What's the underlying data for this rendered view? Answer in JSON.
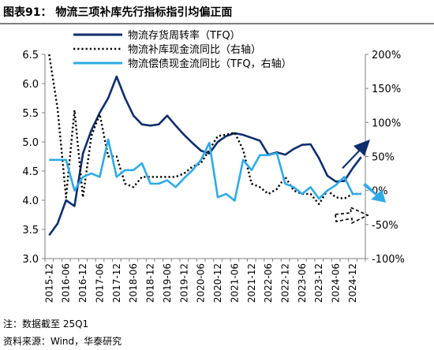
{
  "title": "图表91： 物流三项补库先行指标指引均偏正面",
  "footnote": "注：数据截至 25Q1",
  "source": "资料来源：Wind，华泰研究",
  "colors": {
    "navy": "#0f2e6e",
    "light": "#2eaae6",
    "black": "#000000",
    "axis": "#808080"
  },
  "chart_data": {
    "type": "line",
    "x": [
      "2015-12",
      "2016-03",
      "2016-06",
      "2016-09",
      "2016-12",
      "2017-03",
      "2017-06",
      "2017-09",
      "2017-12",
      "2018-03",
      "2018-06",
      "2018-09",
      "2018-12",
      "2019-03",
      "2019-06",
      "2019-09",
      "2019-12",
      "2020-03",
      "2020-06",
      "2020-09",
      "2020-12",
      "2021-03",
      "2021-06",
      "2021-09",
      "2021-12",
      "2022-03",
      "2022-06",
      "2022-09",
      "2022-12",
      "2023-03",
      "2023-06",
      "2023-09",
      "2023-12",
      "2024-03",
      "2024-06",
      "2024-09",
      "2024-12",
      "2025-03"
    ],
    "xticks": [
      "2015-12",
      "2016-06",
      "2016-12",
      "2017-06",
      "2017-12",
      "2018-06",
      "2018-12",
      "2019-06",
      "2019-12",
      "2020-06",
      "2020-12",
      "2021-06",
      "2021-12",
      "2022-06",
      "2022-12",
      "2023-06",
      "2023-12",
      "2024-06",
      "2024-12"
    ],
    "left_axis": {
      "ylim": [
        3.0,
        6.5
      ],
      "ticks": [
        "3.0",
        "3.5",
        "4.0",
        "4.5",
        "5.0",
        "5.5",
        "6.0",
        "6.5"
      ]
    },
    "right_axis": {
      "ylim": [
        -100,
        200
      ],
      "ticks": [
        "-100%",
        "-50%",
        "0%",
        "50%",
        "100%",
        "150%",
        "200%"
      ]
    },
    "series": [
      {
        "name": "物流存货周转率（TFQ）",
        "axis": "left",
        "color": "#0f2e6e",
        "style": "solid",
        "values": [
          3.4,
          3.6,
          4.0,
          3.9,
          4.8,
          5.2,
          5.5,
          5.75,
          6.12,
          5.75,
          5.45,
          5.3,
          5.28,
          5.3,
          5.45,
          5.28,
          5.12,
          4.98,
          4.85,
          4.8,
          5.0,
          5.1,
          5.15,
          5.12,
          5.07,
          5.02,
          4.78,
          4.82,
          4.78,
          4.88,
          4.95,
          4.96,
          4.72,
          4.42,
          4.32,
          4.33,
          4.55,
          4.74
        ]
      },
      {
        "name": "物流补库现金流同比（右轴）",
        "axis": "right",
        "color": "#000000",
        "style": "dotted",
        "values": [
          200,
          120,
          -10,
          118,
          -10,
          80,
          112,
          50,
          50,
          10,
          5,
          20,
          20,
          20,
          20,
          20,
          25,
          35,
          40,
          60,
          80,
          82,
          85,
          60,
          10,
          5,
          -5,
          2,
          20,
          0,
          -5,
          -5,
          -20,
          0,
          -10,
          -12,
          -5,
          -5
        ]
      },
      {
        "name": "物流偿债现金流同比（TFQ，右轴）",
        "axis": "right",
        "color": "#2eaae6",
        "style": "solid",
        "values": [
          45,
          45,
          45,
          0,
          20,
          25,
          20,
          75,
          20,
          30,
          30,
          40,
          10,
          10,
          15,
          5,
          18,
          30,
          45,
          70,
          -10,
          -5,
          -15,
          45,
          30,
          52,
          52,
          55,
          10,
          5,
          -5,
          5,
          -12,
          0,
          8,
          20,
          -5,
          -5
        ]
      }
    ],
    "annotations": [
      {
        "kind": "arrow-up-right",
        "color": "#0f2e6e",
        "style": "filled"
      },
      {
        "kind": "arrow-down-right",
        "color": "#2eaae6",
        "style": "filled"
      },
      {
        "kind": "arrow-right",
        "color": "#000000",
        "style": "dashed-outline"
      }
    ]
  }
}
